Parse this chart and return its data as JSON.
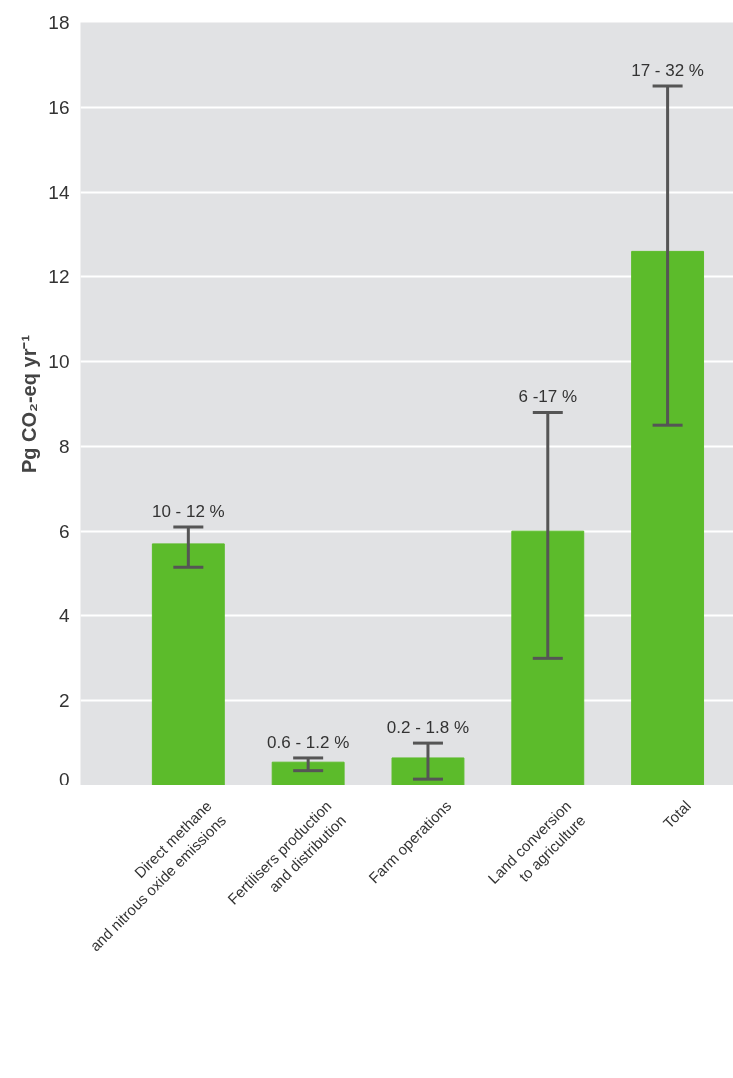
{
  "chart_data": {
    "type": "bar",
    "ylabel": "Pg CO₂-eq yr⁻¹",
    "categories": [
      "Direct methane\nand nitrous oxide emissions",
      "Fertilisers production\nand distribution",
      "Farm operations",
      "Land conversion\nto agriculture",
      "Total"
    ],
    "values": [
      5.7,
      0.55,
      0.65,
      6.0,
      12.6
    ],
    "color": "#5cbb2b",
    "errors": [
      [
        5.15,
        6.1
      ],
      [
        0.35,
        0.65
      ],
      [
        0.15,
        1.0
      ],
      [
        3.0,
        8.8
      ],
      [
        8.5,
        16.5
      ]
    ],
    "annotations": [
      "10 - 12 %",
      "0.6 - 1.2 %",
      "0.2 - 1.8 %",
      "6 -17 %",
      "17 - 32 %"
    ],
    "ylim": [
      0,
      18
    ],
    "yticks": [
      0,
      2,
      4,
      6,
      8,
      10,
      12,
      14,
      16,
      18
    ],
    "grid": "y"
  }
}
